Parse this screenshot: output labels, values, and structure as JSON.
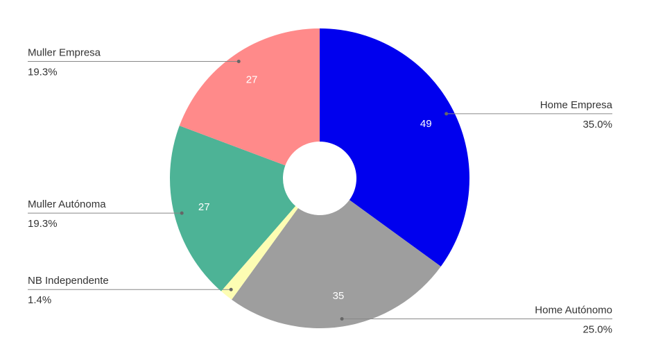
{
  "chart_data": {
    "type": "donut",
    "categories": [
      "Home Empresa",
      "Home Autónomo",
      "NB Independente",
      "Muller Autónoma",
      "Muller Empresa"
    ],
    "values": [
      49,
      35,
      2,
      27,
      27
    ],
    "percent_labels": [
      "35.0%",
      "25.0%",
      "1.4%",
      "19.3%",
      "19.3%"
    ],
    "colors": [
      "#0000ee",
      "#9e9e9e",
      "#fdfdb3",
      "#4db396",
      "#ff8a8a"
    ]
  }
}
